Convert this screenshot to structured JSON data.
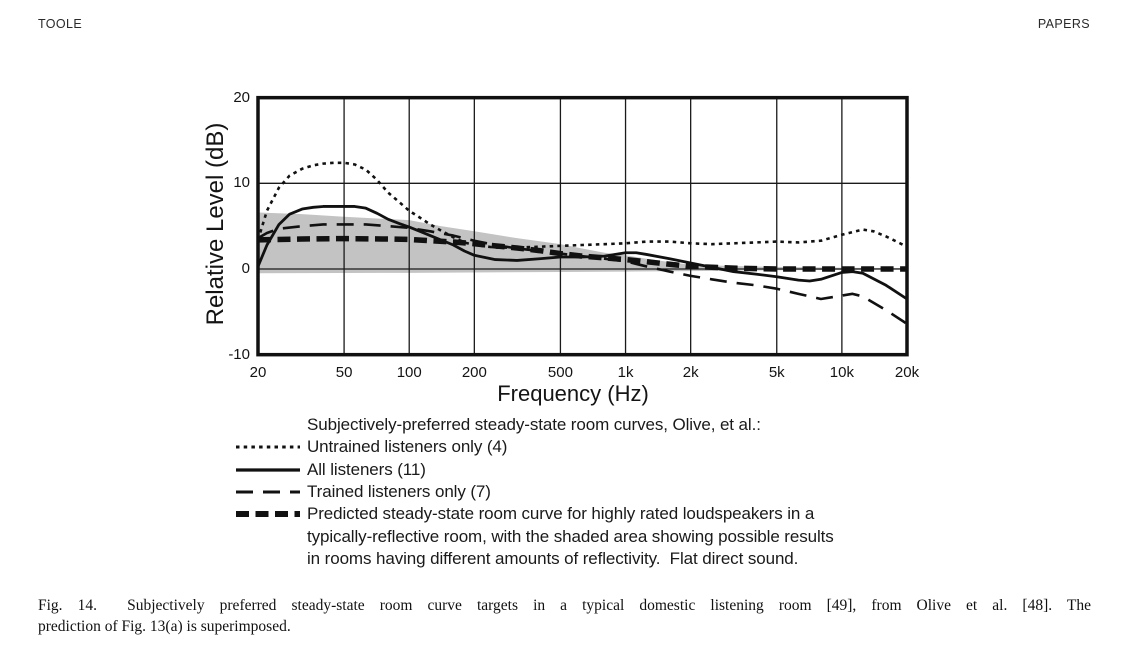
{
  "page": {
    "header_left": "TOOLE",
    "header_right": "PAPERS"
  },
  "figure": {
    "caption_line1": "Fig. 14.  Subjectively preferred steady-state room curve targets in a typical domestic listening room [49], from Olive et al. [48]. The",
    "caption_line2": "prediction of Fig. 13(a) is superimposed."
  },
  "chart_data": {
    "type": "line",
    "x_axis": {
      "label": "Frequency (Hz)",
      "scale": "log",
      "range": [
        20,
        20000
      ],
      "ticks": [
        {
          "f": 20,
          "label": "20"
        },
        {
          "f": 50,
          "label": "50"
        },
        {
          "f": 100,
          "label": "100"
        },
        {
          "f": 200,
          "label": "200"
        },
        {
          "f": 500,
          "label": "500"
        },
        {
          "f": 1000,
          "label": "1k"
        },
        {
          "f": 2000,
          "label": "2k"
        },
        {
          "f": 5000,
          "label": "5k"
        },
        {
          "f": 10000,
          "label": "10k"
        },
        {
          "f": 20000,
          "label": "20k"
        }
      ]
    },
    "y_axis": {
      "label": "Relative Level (dB)",
      "range": [
        -10,
        20
      ],
      "ticks": [
        {
          "v": 20,
          "label": "20"
        },
        {
          "v": 10,
          "label": "10"
        },
        {
          "v": 0,
          "label": "0"
        },
        {
          "v": -10,
          "label": "-10"
        }
      ]
    },
    "grid": true,
    "colors": {
      "curves": "#111111",
      "shaded_area": "#c3c3c3",
      "border": "#111111"
    },
    "legend": {
      "title": "Subjectively-preferred steady-state room curves, Olive, et al.:",
      "items": [
        {
          "style": "dotted",
          "lines": [
            "Untrained listeners only (4)"
          ]
        },
        {
          "style": "solid",
          "lines": [
            "All listeners (11)"
          ]
        },
        {
          "style": "long-dash",
          "lines": [
            "Trained listeners only (7)"
          ]
        },
        {
          "style": "thick-dash",
          "lines": [
            "Predicted steady-state room curve for highly rated loudspeakers in a",
            "typically-reflective room, with the shaded area showing possible results",
            "in rooms having different amounts of reflectivity.  Flat direct sound."
          ]
        }
      ]
    },
    "series": [
      {
        "name": "Untrained listeners only (4)",
        "style": "dotted",
        "points": [
          [
            20,
            3.4
          ],
          [
            22,
            6.8
          ],
          [
            25,
            9.5
          ],
          [
            28,
            10.9
          ],
          [
            32,
            11.7
          ],
          [
            36,
            12.1
          ],
          [
            40,
            12.3
          ],
          [
            45,
            12.4
          ],
          [
            50,
            12.4
          ],
          [
            56,
            12.2
          ],
          [
            63,
            11.6
          ],
          [
            71,
            10.4
          ],
          [
            80,
            8.9
          ],
          [
            90,
            7.8
          ],
          [
            100,
            6.8
          ],
          [
            112,
            6.0
          ],
          [
            125,
            5.2
          ],
          [
            140,
            4.5
          ],
          [
            160,
            3.7
          ],
          [
            180,
            3.1
          ],
          [
            200,
            2.8
          ],
          [
            250,
            2.5
          ],
          [
            315,
            2.5
          ],
          [
            400,
            2.6
          ],
          [
            500,
            2.7
          ],
          [
            630,
            2.8
          ],
          [
            800,
            2.9
          ],
          [
            1000,
            3.0
          ],
          [
            1250,
            3.2
          ],
          [
            1600,
            3.2
          ],
          [
            2000,
            3.0
          ],
          [
            2500,
            2.9
          ],
          [
            3150,
            3.0
          ],
          [
            4000,
            3.1
          ],
          [
            5000,
            3.2
          ],
          [
            6300,
            3.1
          ],
          [
            8000,
            3.3
          ],
          [
            10000,
            4.0
          ],
          [
            12500,
            4.6
          ],
          [
            14000,
            4.4
          ],
          [
            16000,
            3.8
          ],
          [
            20000,
            2.6
          ]
        ]
      },
      {
        "name": "All listeners (11)",
        "style": "solid",
        "points": [
          [
            20,
            0.3
          ],
          [
            22,
            2.8
          ],
          [
            25,
            5.2
          ],
          [
            28,
            6.4
          ],
          [
            32,
            7.0
          ],
          [
            36,
            7.2
          ],
          [
            40,
            7.3
          ],
          [
            50,
            7.3
          ],
          [
            56,
            7.3
          ],
          [
            63,
            7.1
          ],
          [
            71,
            6.5
          ],
          [
            80,
            5.8
          ],
          [
            90,
            5.3
          ],
          [
            100,
            4.9
          ],
          [
            112,
            4.4
          ],
          [
            125,
            3.9
          ],
          [
            140,
            3.4
          ],
          [
            160,
            2.8
          ],
          [
            180,
            2.1
          ],
          [
            200,
            1.6
          ],
          [
            250,
            1.1
          ],
          [
            315,
            1.0
          ],
          [
            400,
            1.2
          ],
          [
            500,
            1.4
          ],
          [
            630,
            1.4
          ],
          [
            800,
            1.5
          ],
          [
            1000,
            1.9
          ],
          [
            1120,
            1.9
          ],
          [
            1250,
            1.7
          ],
          [
            1600,
            1.2
          ],
          [
            2000,
            0.7
          ],
          [
            2500,
            0.2
          ],
          [
            3150,
            -0.3
          ],
          [
            4000,
            -0.6
          ],
          [
            5000,
            -0.9
          ],
          [
            6300,
            -1.3
          ],
          [
            7100,
            -1.4
          ],
          [
            8000,
            -1.2
          ],
          [
            10000,
            -0.4
          ],
          [
            11200,
            -0.3
          ],
          [
            12500,
            -0.5
          ],
          [
            16000,
            -1.9
          ],
          [
            20000,
            -3.5
          ]
        ]
      },
      {
        "name": "Trained listeners only (7)",
        "style": "long-dash",
        "points": [
          [
            20,
            3.6
          ],
          [
            22,
            4.2
          ],
          [
            25,
            4.7
          ],
          [
            32,
            5.0
          ],
          [
            40,
            5.2
          ],
          [
            50,
            5.2
          ],
          [
            63,
            5.2
          ],
          [
            80,
            5.0
          ],
          [
            100,
            4.8
          ],
          [
            125,
            4.4
          ],
          [
            160,
            3.9
          ],
          [
            200,
            3.3
          ],
          [
            250,
            2.8
          ],
          [
            315,
            2.4
          ],
          [
            400,
            2.1
          ],
          [
            500,
            1.8
          ],
          [
            630,
            1.5
          ],
          [
            800,
            1.2
          ],
          [
            1000,
            0.9
          ],
          [
            1250,
            0.3
          ],
          [
            1600,
            -0.3
          ],
          [
            2000,
            -0.8
          ],
          [
            2500,
            -1.2
          ],
          [
            3150,
            -1.6
          ],
          [
            4000,
            -1.9
          ],
          [
            5000,
            -2.3
          ],
          [
            6300,
            -2.9
          ],
          [
            8000,
            -3.5
          ],
          [
            10000,
            -3.1
          ],
          [
            11200,
            -2.9
          ],
          [
            12500,
            -3.2
          ],
          [
            16000,
            -4.8
          ],
          [
            20000,
            -6.4
          ]
        ]
      },
      {
        "name": "Predicted steady-state room curve (highly rated loudspeakers, typically-reflective room)",
        "style": "thick-dash",
        "points": [
          [
            20,
            3.4
          ],
          [
            32,
            3.5
          ],
          [
            50,
            3.55
          ],
          [
            80,
            3.5
          ],
          [
            100,
            3.45
          ],
          [
            125,
            3.3
          ],
          [
            160,
            3.15
          ],
          [
            200,
            2.95
          ],
          [
            250,
            2.7
          ],
          [
            315,
            2.45
          ],
          [
            400,
            2.15
          ],
          [
            500,
            1.8
          ],
          [
            630,
            1.5
          ],
          [
            800,
            1.3
          ],
          [
            1000,
            1.1
          ],
          [
            1250,
            0.85
          ],
          [
            1600,
            0.55
          ],
          [
            2000,
            0.3
          ],
          [
            2500,
            0.2
          ],
          [
            3150,
            0.1
          ],
          [
            4000,
            0.05
          ],
          [
            5000,
            0.0
          ],
          [
            20000,
            0.0
          ]
        ]
      }
    ],
    "shaded_region": {
      "upper": [
        [
          20,
          6.6
        ],
        [
          32,
          6.4
        ],
        [
          50,
          6.1
        ],
        [
          71,
          5.9
        ],
        [
          100,
          5.7
        ],
        [
          140,
          5.0
        ],
        [
          200,
          4.4
        ],
        [
          315,
          3.6
        ],
        [
          500,
          2.9
        ],
        [
          630,
          2.4
        ],
        [
          800,
          1.9
        ],
        [
          1000,
          1.6
        ],
        [
          1250,
          1.2
        ],
        [
          1600,
          0.8
        ],
        [
          2000,
          0.5
        ],
        [
          3150,
          0.35
        ],
        [
          5000,
          0.25
        ],
        [
          10000,
          0.15
        ],
        [
          20000,
          0.1
        ]
      ],
      "lower": [
        [
          20,
          -0.5
        ],
        [
          100,
          -0.45
        ],
        [
          500,
          -0.35
        ],
        [
          1000,
          -0.3
        ],
        [
          2000,
          -0.25
        ],
        [
          5000,
          -0.15
        ],
        [
          10000,
          -0.1
        ],
        [
          20000,
          0.0
        ]
      ]
    }
  }
}
